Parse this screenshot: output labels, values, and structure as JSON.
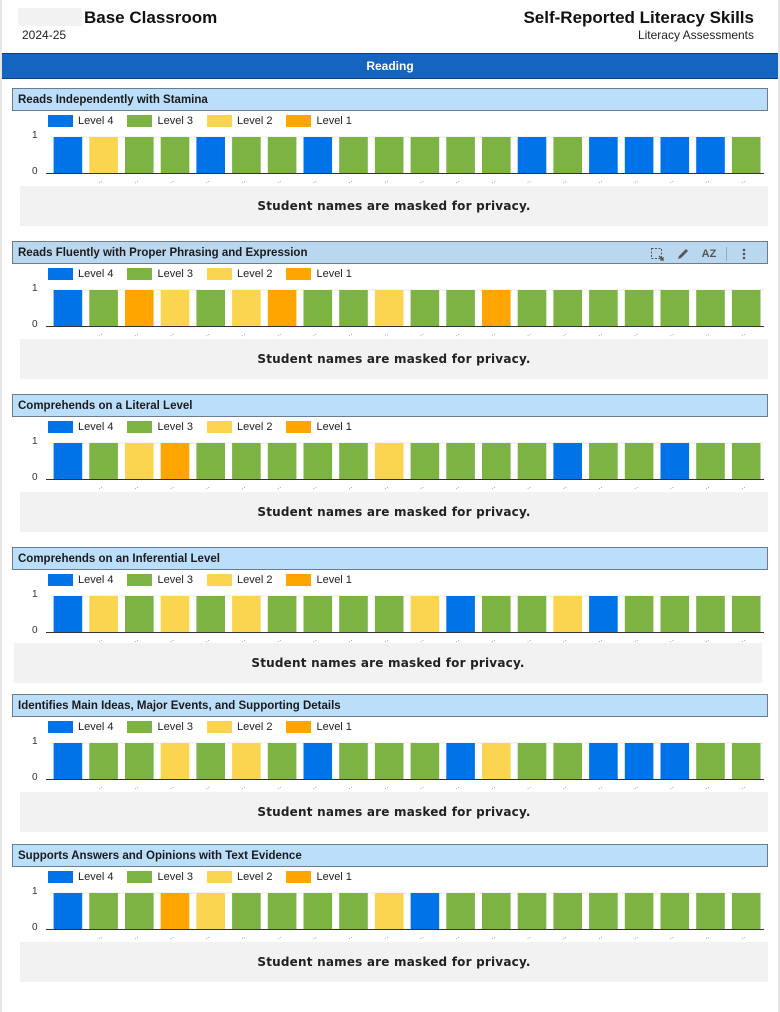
{
  "header": {
    "school_name": "Base Classroom",
    "year": "2024-25",
    "report_title": "Self-Reported Literacy Skills",
    "report_subtitle": "Literacy Assessments"
  },
  "section": {
    "label": "Reading"
  },
  "toolbar": {
    "icons": [
      "select-region-icon",
      "pencil-icon",
      "sort-az-icon",
      "more-vert-icon"
    ],
    "sort_label": "AZ"
  },
  "privacy_note": "Student names are masked for privacy.",
  "colors": {
    "Level 4": "#0073e9",
    "Level 3": "#7cb342",
    "Level 2": "#fbd54f",
    "Level 1": "#ffa500"
  },
  "chart_data": [
    {
      "type": "bar",
      "title": "Reads Independently with Stamina",
      "legend": [
        "Level 4",
        "Level 3",
        "Level 2",
        "Level 1"
      ],
      "legend_position": "top-left",
      "ylim": [
        0,
        1
      ],
      "yticks": [
        "0",
        "1"
      ],
      "categories_masked": true,
      "num_students": 20,
      "values": [
        1,
        1,
        1,
        1,
        1,
        1,
        1,
        1,
        1,
        1,
        1,
        1,
        1,
        1,
        1,
        1,
        1,
        1,
        1,
        1
      ],
      "levels": [
        "Level 4",
        "Level 2",
        "Level 3",
        "Level 3",
        "Level 4",
        "Level 3",
        "Level 3",
        "Level 4",
        "Level 3",
        "Level 3",
        "Level 3",
        "Level 3",
        "Level 3",
        "Level 4",
        "Level 3",
        "Level 4",
        "Level 4",
        "Level 4",
        "Level 4",
        "Level 3"
      ]
    },
    {
      "type": "bar",
      "title": "Reads Fluently with Proper Phrasing and Expression",
      "legend": [
        "Level 4",
        "Level 3",
        "Level 2",
        "Level 1"
      ],
      "legend_position": "top-left",
      "ylim": [
        0,
        1
      ],
      "yticks": [
        "0",
        "1"
      ],
      "categories_masked": true,
      "num_students": 20,
      "values": [
        1,
        1,
        1,
        1,
        1,
        1,
        1,
        1,
        1,
        1,
        1,
        1,
        1,
        1,
        1,
        1,
        1,
        1,
        1,
        1
      ],
      "levels": [
        "Level 4",
        "Level 3",
        "Level 1",
        "Level 2",
        "Level 3",
        "Level 2",
        "Level 1",
        "Level 3",
        "Level 3",
        "Level 2",
        "Level 3",
        "Level 3",
        "Level 1",
        "Level 3",
        "Level 3",
        "Level 3",
        "Level 3",
        "Level 3",
        "Level 3",
        "Level 3"
      ]
    },
    {
      "type": "bar",
      "title": "Comprehends on a Literal Level",
      "legend": [
        "Level 4",
        "Level 3",
        "Level 2",
        "Level 1"
      ],
      "legend_position": "top-left",
      "ylim": [
        0,
        1
      ],
      "yticks": [
        "0",
        "1"
      ],
      "categories_masked": true,
      "num_students": 20,
      "values": [
        1,
        1,
        1,
        1,
        1,
        1,
        1,
        1,
        1,
        1,
        1,
        1,
        1,
        1,
        1,
        1,
        1,
        1,
        1,
        1
      ],
      "levels": [
        "Level 4",
        "Level 3",
        "Level 2",
        "Level 1",
        "Level 3",
        "Level 3",
        "Level 3",
        "Level 3",
        "Level 3",
        "Level 2",
        "Level 3",
        "Level 3",
        "Level 3",
        "Level 3",
        "Level 4",
        "Level 3",
        "Level 3",
        "Level 4",
        "Level 3",
        "Level 3"
      ]
    },
    {
      "type": "bar",
      "title": "Comprehends on an Inferential Level",
      "legend": [
        "Level 4",
        "Level 3",
        "Level 2",
        "Level 1"
      ],
      "legend_position": "top-left",
      "ylim": [
        0,
        1
      ],
      "yticks": [
        "0",
        "1"
      ],
      "categories_masked": true,
      "num_students": 20,
      "values": [
        1,
        1,
        1,
        1,
        1,
        1,
        1,
        1,
        1,
        1,
        1,
        1,
        1,
        1,
        1,
        1,
        1,
        1,
        1,
        1
      ],
      "levels": [
        "Level 4",
        "Level 2",
        "Level 3",
        "Level 2",
        "Level 3",
        "Level 2",
        "Level 3",
        "Level 3",
        "Level 3",
        "Level 3",
        "Level 2",
        "Level 4",
        "Level 3",
        "Level 3",
        "Level 2",
        "Level 4",
        "Level 3",
        "Level 3",
        "Level 3",
        "Level 3"
      ]
    },
    {
      "type": "bar",
      "title": "Identifies Main Ideas, Major Events, and Supporting Details",
      "legend": [
        "Level 4",
        "Level 3",
        "Level 2",
        "Level 1"
      ],
      "legend_position": "top-left",
      "ylim": [
        0,
        1
      ],
      "yticks": [
        "0",
        "1"
      ],
      "categories_masked": true,
      "num_students": 20,
      "values": [
        1,
        1,
        1,
        1,
        1,
        1,
        1,
        1,
        1,
        1,
        1,
        1,
        1,
        1,
        1,
        1,
        1,
        1,
        1,
        1
      ],
      "levels": [
        "Level 4",
        "Level 3",
        "Level 3",
        "Level 2",
        "Level 3",
        "Level 2",
        "Level 3",
        "Level 4",
        "Level 3",
        "Level 3",
        "Level 3",
        "Level 4",
        "Level 2",
        "Level 3",
        "Level 3",
        "Level 4",
        "Level 4",
        "Level 4",
        "Level 3",
        "Level 3"
      ]
    },
    {
      "type": "bar",
      "title": "Supports Answers and Opinions with Text Evidence",
      "legend": [
        "Level 4",
        "Level 3",
        "Level 2",
        "Level 1"
      ],
      "legend_position": "top-left",
      "ylim": [
        0,
        1
      ],
      "yticks": [
        "0",
        "1"
      ],
      "categories_masked": true,
      "num_students": 20,
      "values": [
        1,
        1,
        1,
        1,
        1,
        1,
        1,
        1,
        1,
        1,
        1,
        1,
        1,
        1,
        1,
        1,
        1,
        1,
        1,
        1
      ],
      "levels": [
        "Level 4",
        "Level 3",
        "Level 3",
        "Level 1",
        "Level 2",
        "Level 3",
        "Level 3",
        "Level 3",
        "Level 3",
        "Level 2",
        "Level 4",
        "Level 3",
        "Level 3",
        "Level 3",
        "Level 3",
        "Level 3",
        "Level 3",
        "Level 3",
        "Level 3",
        "Level 3"
      ]
    }
  ]
}
